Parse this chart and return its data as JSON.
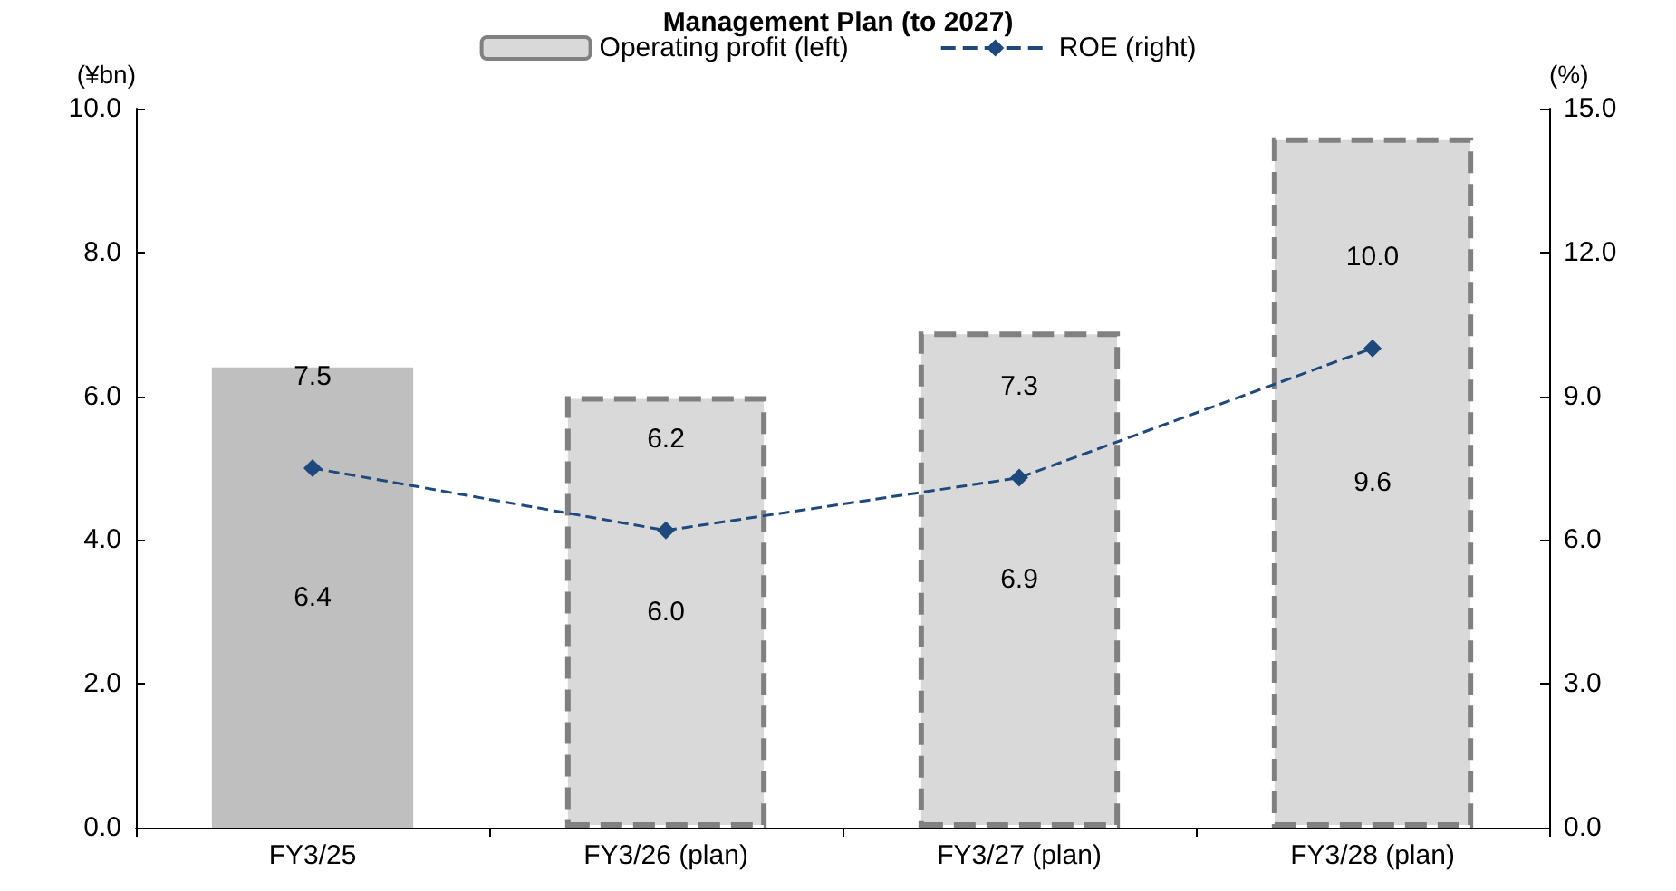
{
  "chart_data": {
    "type": "bar",
    "title": "Management Plan (to 2027)",
    "ylabel": "(¥bn)",
    "y2label": "(%)",
    "categories": [
      "FY3/25",
      "FY3/26 (plan)",
      "FY3/27 (plan)",
      "FY3/28 (plan)"
    ],
    "series": [
      {
        "name": "Operating profit (left)",
        "color": "#d9d9d9",
        "colors": [
          "#bfbfbf",
          "#d9d9d9",
          "#d9d9d9",
          "#d9d9d9"
        ],
        "line_style": "dashed",
        "values": [
          6.4,
          6.0,
          6.9,
          9.6
        ],
        "value_labels": [
          "6.4",
          "6.0",
          "6.9",
          "9.6"
        ]
      },
      {
        "name": "ROE (right)",
        "type": "line",
        "axis": "y2",
        "color": "#1f497d",
        "marker": "diamond",
        "line_style": "dashed",
        "values": [
          7.5,
          6.2,
          7.3,
          10.0
        ],
        "value_labels": [
          "7.5",
          "6.2",
          "7.3",
          "10.0"
        ]
      }
    ],
    "ylim": [
      0,
      10
    ],
    "yticks": [
      {
        "value": 0,
        "label": "0.0"
      },
      {
        "value": 2,
        "label": "2.0"
      },
      {
        "value": 4,
        "label": "4.0"
      },
      {
        "value": 6,
        "label": "6.0"
      },
      {
        "value": 8,
        "label": "8.0"
      },
      {
        "value": 10,
        "label": "10.0"
      }
    ],
    "y2lim": [
      0,
      15
    ],
    "y2ticks": [
      {
        "value": 0,
        "label": "0.0"
      },
      {
        "value": 3,
        "label": "3.0"
      },
      {
        "value": 6,
        "label": "6.0"
      },
      {
        "value": 9,
        "label": "9.0"
      },
      {
        "value": 12,
        "label": "12.0"
      },
      {
        "value": 15,
        "label": "15.0"
      }
    ],
    "legend": "top",
    "grid": false
  }
}
